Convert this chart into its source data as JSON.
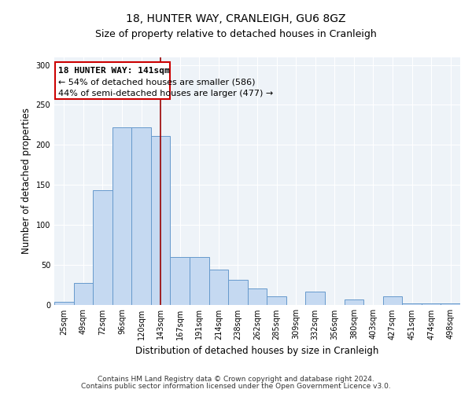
{
  "title": "18, HUNTER WAY, CRANLEIGH, GU6 8GZ",
  "subtitle": "Size of property relative to detached houses in Cranleigh",
  "xlabel": "Distribution of detached houses by size in Cranleigh",
  "ylabel": "Number of detached properties",
  "categories": [
    "25sqm",
    "49sqm",
    "72sqm",
    "96sqm",
    "120sqm",
    "143sqm",
    "167sqm",
    "191sqm",
    "214sqm",
    "238sqm",
    "262sqm",
    "285sqm",
    "309sqm",
    "332sqm",
    "356sqm",
    "380sqm",
    "403sqm",
    "427sqm",
    "451sqm",
    "474sqm",
    "498sqm"
  ],
  "values": [
    3,
    27,
    143,
    222,
    222,
    211,
    60,
    60,
    44,
    31,
    20,
    10,
    0,
    16,
    0,
    6,
    0,
    10,
    1,
    1,
    1
  ],
  "bar_color": "#c5d9f1",
  "bar_edge_color": "#6699cc",
  "red_line_index": 5,
  "red_line_color": "#990000",
  "annotation_line1": "18 HUNTER WAY: 141sqm",
  "annotation_line2": "← 54% of detached houses are smaller (586)",
  "annotation_line3": "44% of semi-detached houses are larger (477) →",
  "annotation_box_edge": "#cc0000",
  "ylim": [
    0,
    310
  ],
  "yticks": [
    0,
    50,
    100,
    150,
    200,
    250,
    300
  ],
  "footer_line1": "Contains HM Land Registry data © Crown copyright and database right 2024.",
  "footer_line2": "Contains public sector information licensed under the Open Government Licence v3.0.",
  "title_fontsize": 10,
  "subtitle_fontsize": 9,
  "axis_label_fontsize": 8.5,
  "tick_fontsize": 7,
  "annotation_fontsize": 8,
  "footer_fontsize": 6.5,
  "bg_color": "#eef3f8"
}
